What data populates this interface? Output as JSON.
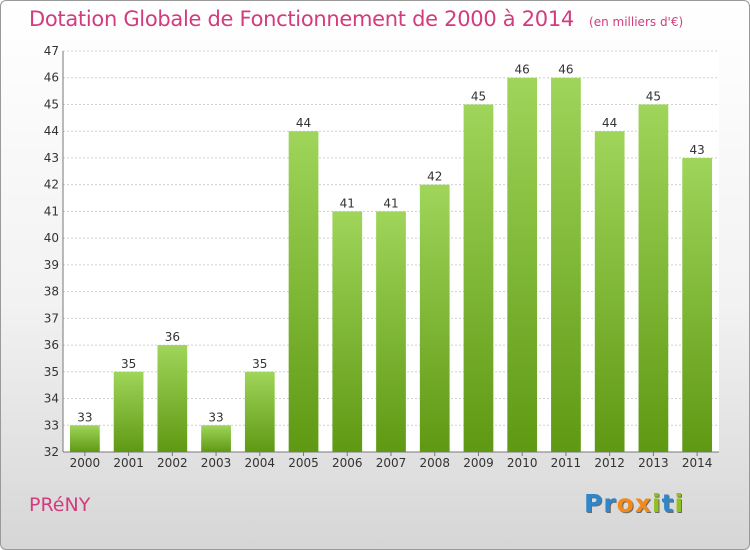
{
  "title": "Dotation Globale de Fonctionnement de 2000 à 2014",
  "subtitle": "(en milliers d'€)",
  "commune": "PRéNY",
  "logo": [
    "P",
    "r",
    "o",
    "x",
    "i",
    "t",
    "i"
  ],
  "colors": {
    "title": "#d23c7e",
    "bar_top": "#9fd55a",
    "bar_bottom": "#5f9913",
    "logo_letters": [
      "#2f86c9",
      "#2f86c9",
      "#f08a1f",
      "#f08a1f",
      "#93c01f",
      "#2f86c9",
      "#93c01f"
    ]
  },
  "chart_data": {
    "type": "bar",
    "categories": [
      "2000",
      "2001",
      "2002",
      "2003",
      "2004",
      "2005",
      "2006",
      "2007",
      "2008",
      "2009",
      "2010",
      "2011",
      "2012",
      "2013",
      "2014"
    ],
    "values": [
      33,
      35,
      36,
      33,
      35,
      44,
      41,
      41,
      42,
      45,
      46,
      46,
      44,
      45,
      43
    ],
    "ylim": [
      32,
      47
    ],
    "yticks": [
      32,
      33,
      34,
      35,
      36,
      37,
      38,
      39,
      40,
      41,
      42,
      43,
      44,
      45,
      46,
      47
    ],
    "grid": true,
    "xlabel": "",
    "ylabel": ""
  }
}
